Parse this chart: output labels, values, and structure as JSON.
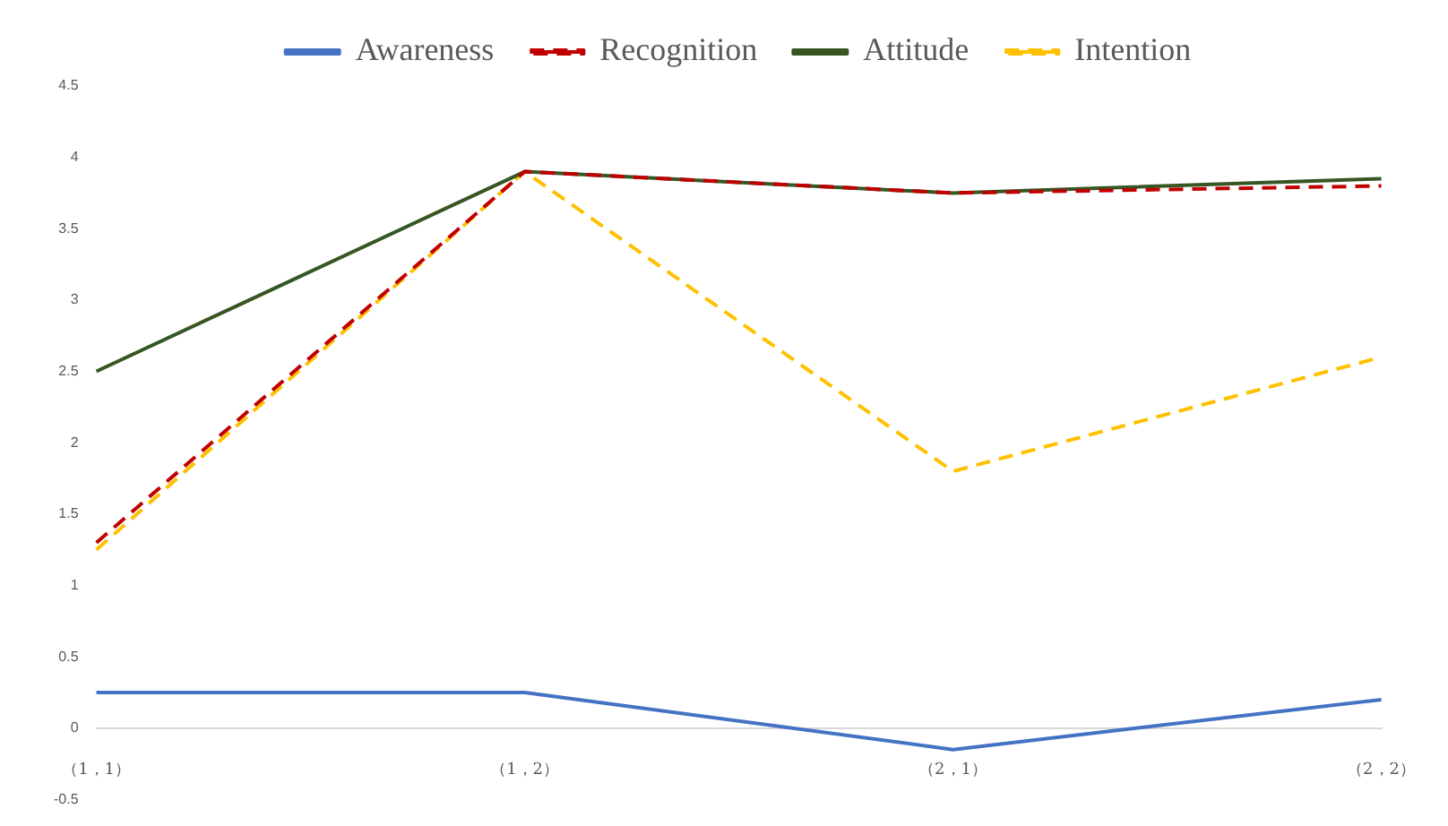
{
  "chart_data": {
    "type": "line",
    "categories": [
      "（1，1）",
      "（1，2）",
      "（2，1）",
      "（2，2）"
    ],
    "series": [
      {
        "name": "Awareness",
        "color": "#4472c4",
        "values": [
          0.25,
          0.25,
          -0.15,
          0.2
        ],
        "line_style": "solid"
      },
      {
        "name": "Recognition",
        "color": "#c00000",
        "values": [
          1.3,
          3.9,
          3.75,
          3.8
        ],
        "line_style": "dashed"
      },
      {
        "name": "Attitude",
        "color": "#375623",
        "values": [
          2.5,
          3.9,
          3.75,
          3.85
        ],
        "line_style": "solid"
      },
      {
        "name": "Intention",
        "color": "#ffc000",
        "values": [
          1.25,
          3.9,
          1.8,
          2.6
        ],
        "line_style": "dashed"
      }
    ],
    "ylim": [
      -0.5,
      4.5
    ],
    "yticks": [
      -0.5,
      0,
      0.5,
      1,
      1.5,
      2,
      2.5,
      3,
      3.5,
      4,
      4.5
    ],
    "grid": false,
    "legend": "top",
    "marker": "none"
  }
}
